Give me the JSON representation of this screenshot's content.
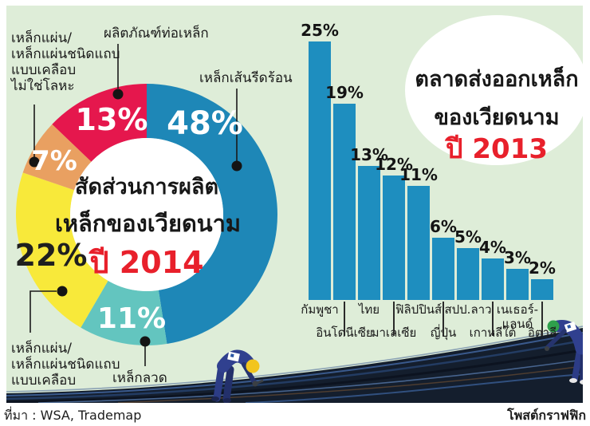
{
  "source": {
    "label": "ที่มา : WSA, Trademap",
    "credit": "โพสต์กราฟฟิก"
  },
  "colors": {
    "panel_bg": "#deedd8",
    "accent_red_text": "#e8202b",
    "bar_blue": "#1e8ebf",
    "text_black": "#1a1a1a"
  },
  "chart_data": [
    {
      "type": "pie",
      "subtype": "donut",
      "title_lines": [
        "สัดส่วนการผลิต",
        "เหล็กของเวียดนาม"
      ],
      "title_year": "ปี 2014",
      "unit": "%",
      "direction": "clockwise",
      "start": "top",
      "slices": [
        {
          "label": "เหล็กเส้นรีดร้อน",
          "value": 48,
          "color": "#1e87b7",
          "pct_color": "#ffffff"
        },
        {
          "label": "เหล็กลวด",
          "value": 11,
          "color": "#63c5bf",
          "pct_color": "#ffffff"
        },
        {
          "label": "เหล็กแผ่น/เหล็กแผ่นชนิดแถบแบบเคลือบ",
          "value": 22,
          "color": "#f8e93a",
          "pct_color": "#1f1f1f"
        },
        {
          "label": "เหล็กแผ่น/เหล็กแผ่นชนิดแถบแบบเคลือบไม่ใช่โลหะ",
          "value": 7,
          "color": "#e9a061",
          "pct_color": "#ffffff"
        },
        {
          "label": "ผลิตภัณฑ์ท่อเหล็ก",
          "value": 13,
          "color": "#e5174d",
          "pct_color": "#ffffff"
        }
      ],
      "callouts": [
        {
          "slice": 4,
          "lines": [
            "ผลิตภัณฑ์ท่อเหล็ก"
          ]
        },
        {
          "slice": 0,
          "lines": [
            "เหล็กเส้นรีดร้อน"
          ]
        },
        {
          "slice": 3,
          "lines": [
            "เหล็กแผ่น/",
            "เหล็กแผ่นชนิดแถบ",
            "แบบเคลือบ",
            "ไม่ใช่โลหะ"
          ]
        },
        {
          "slice": 2,
          "lines": [
            "เหล็กแผ่น/",
            "เหล็กแผ่นชนิดแถบ",
            "แบบเคลือบ"
          ]
        },
        {
          "slice": 1,
          "lines": [
            "เหล็กลวด"
          ]
        }
      ]
    },
    {
      "type": "bar",
      "title_lines": [
        "ตลาดส่งออกเหล็ก",
        "ของเวียดนาม"
      ],
      "title_year": "ปี 2013",
      "unit": "%",
      "value_labels": true,
      "categories": [
        "กัมพูชา",
        "อินโดนีเซีย",
        "ไทย",
        "มาเลเซีย",
        "ฟิลิปปินส์",
        "ญี่ปุ่น",
        "สปป.ลาว",
        "เกาหลีใต้",
        "เนเธอร์-\nแลนด์",
        "อิตาลี"
      ],
      "values": [
        25,
        19,
        13,
        12,
        11,
        6,
        5,
        4,
        3,
        2
      ],
      "bar_color": "#1e8ebf",
      "ylim": [
        0,
        25
      ],
      "grid": false,
      "legend": false
    }
  ]
}
